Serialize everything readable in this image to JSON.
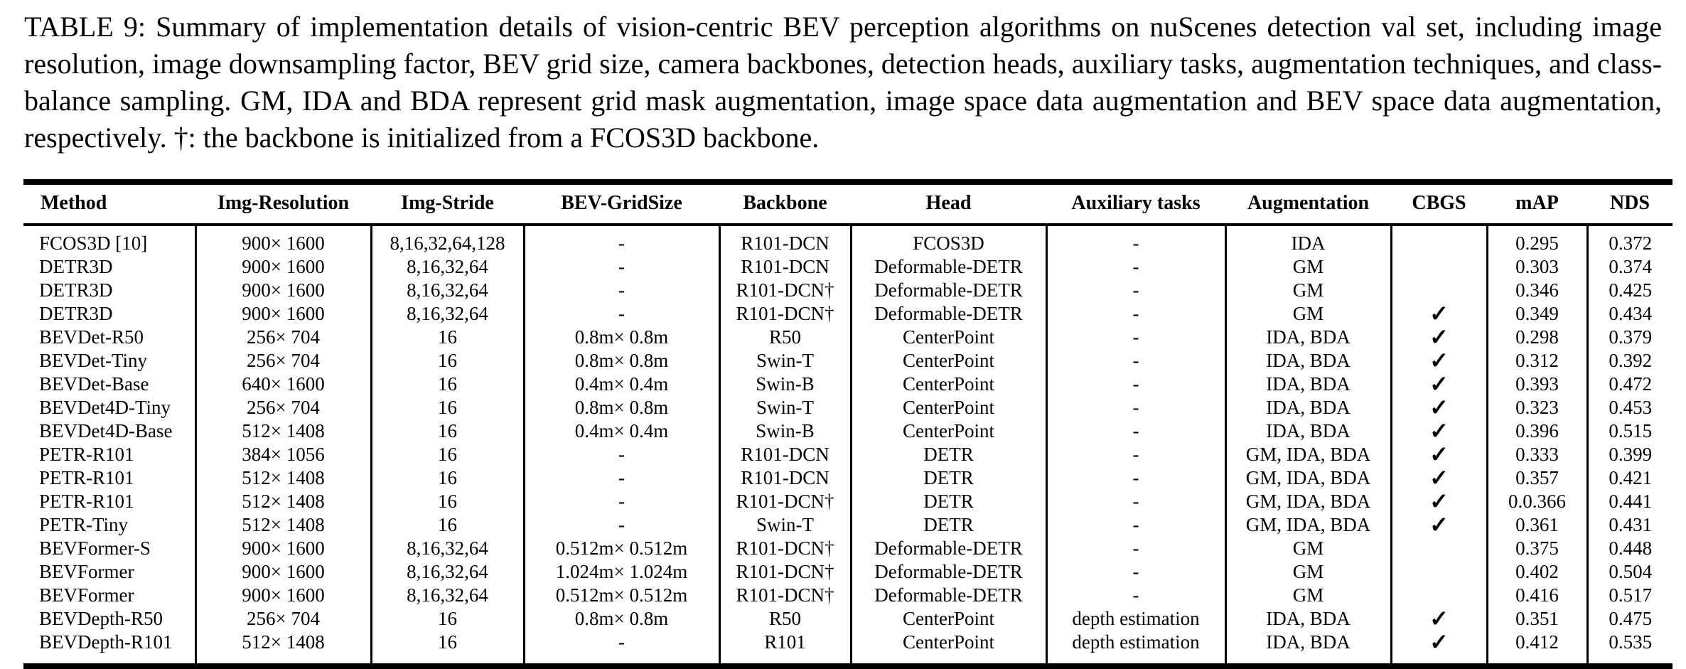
{
  "caption": "TABLE 9: Summary of implementation details of vision-centric BEV perception algorithms on nuScenes detection val set, including image resolution, image downsampling factor, BEV grid size, camera backbones, detection heads, auxiliary tasks, augmentation techniques, and class-balance sampling. GM, IDA and BDA represent grid mask augmentation, image space data augmentation and BEV space data augmentation, respectively. †: the backbone is initialized from a FCOS3D backbone.",
  "table": {
    "columns": [
      "Method",
      "Img-Resolution",
      "Img-Stride",
      "BEV-GridSize",
      "Backbone",
      "Head",
      "Auxiliary tasks",
      "Augmentation",
      "CBGS",
      "mAP",
      "NDS"
    ],
    "checkmark_glyph": "✓",
    "rows": [
      [
        "FCOS3D [10]",
        "900× 1600",
        "8,16,32,64,128",
        "-",
        "R101-DCN",
        "FCOS3D",
        "-",
        "IDA",
        "",
        "0.295",
        "0.372"
      ],
      [
        "DETR3D",
        "900× 1600",
        "8,16,32,64",
        "-",
        "R101-DCN",
        "Deformable-DETR",
        "-",
        "GM",
        "",
        "0.303",
        "0.374"
      ],
      [
        "DETR3D",
        "900× 1600",
        "8,16,32,64",
        "-",
        "R101-DCN†",
        "Deformable-DETR",
        "-",
        "GM",
        "",
        "0.346",
        "0.425"
      ],
      [
        "DETR3D",
        "900× 1600",
        "8,16,32,64",
        "-",
        "R101-DCN†",
        "Deformable-DETR",
        "-",
        "GM",
        "✓",
        "0.349",
        "0.434"
      ],
      [
        "BEVDet-R50",
        "256× 704",
        "16",
        "0.8m× 0.8m",
        "R50",
        "CenterPoint",
        "-",
        "IDA, BDA",
        "✓",
        "0.298",
        "0.379"
      ],
      [
        "BEVDet-Tiny",
        "256× 704",
        "16",
        "0.8m× 0.8m",
        "Swin-T",
        "CenterPoint",
        "-",
        "IDA, BDA",
        "✓",
        "0.312",
        "0.392"
      ],
      [
        "BEVDet-Base",
        "640× 1600",
        "16",
        "0.4m× 0.4m",
        "Swin-B",
        "CenterPoint",
        "-",
        "IDA, BDA",
        "✓",
        "0.393",
        "0.472"
      ],
      [
        "BEVDet4D-Tiny",
        "256× 704",
        "16",
        "0.8m× 0.8m",
        "Swin-T",
        "CenterPoint",
        "-",
        "IDA, BDA",
        "✓",
        "0.323",
        "0.453"
      ],
      [
        "BEVDet4D-Base",
        "512× 1408",
        "16",
        "0.4m× 0.4m",
        "Swin-B",
        "CenterPoint",
        "-",
        "IDA, BDA",
        "✓",
        "0.396",
        "0.515"
      ],
      [
        "PETR-R101",
        "384× 1056",
        "16",
        "-",
        "R101-DCN",
        "DETR",
        "-",
        "GM, IDA, BDA",
        "✓",
        "0.333",
        "0.399"
      ],
      [
        "PETR-R101",
        "512× 1408",
        "16",
        "-",
        "R101-DCN",
        "DETR",
        "-",
        "GM, IDA, BDA",
        "✓",
        "0.357",
        "0.421"
      ],
      [
        "PETR-R101",
        "512× 1408",
        "16",
        "-",
        "R101-DCN†",
        "DETR",
        "-",
        "GM, IDA, BDA",
        "✓",
        "0.0.366",
        "0.441"
      ],
      [
        "PETR-Tiny",
        "512× 1408",
        "16",
        "-",
        "Swin-T",
        "DETR",
        "-",
        "GM, IDA, BDA",
        "✓",
        "0.361",
        "0.431"
      ],
      [
        "BEVFormer-S",
        "900× 1600",
        "8,16,32,64",
        "0.512m× 0.512m",
        "R101-DCN†",
        "Deformable-DETR",
        "-",
        "GM",
        "",
        "0.375",
        "0.448"
      ],
      [
        "BEVFormer",
        "900× 1600",
        "8,16,32,64",
        "1.024m× 1.024m",
        "R101-DCN†",
        "Deformable-DETR",
        "-",
        "GM",
        "",
        "0.402",
        "0.504"
      ],
      [
        "BEVFormer",
        "900× 1600",
        "8,16,32,64",
        "0.512m× 0.512m",
        "R101-DCN†",
        "Deformable-DETR",
        "-",
        "GM",
        "",
        "0.416",
        "0.517"
      ],
      [
        "BEVDepth-R50",
        "256× 704",
        "16",
        "0.8m× 0.8m",
        "R50",
        "CenterPoint",
        "depth estimation",
        "IDA, BDA",
        "✓",
        "0.351",
        "0.475"
      ],
      [
        "BEVDepth-R101",
        "512× 1408",
        "16",
        "-",
        "R101",
        "CenterPoint",
        "depth estimation",
        "IDA, BDA",
        "✓",
        "0.412",
        "0.535"
      ]
    ]
  }
}
